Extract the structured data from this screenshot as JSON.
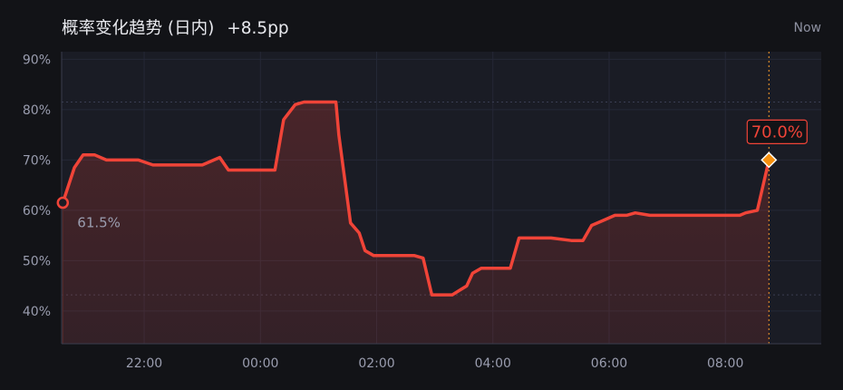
{
  "header": {
    "title": "概率变化趋势 (日内)",
    "change": "+8.5pp",
    "now_label": "Now"
  },
  "colors": {
    "background": "#121317",
    "plot_background": "#1a1c25",
    "line": "#f04438",
    "fill": "#f04438",
    "end_marker": "#f5900f",
    "axis_text": "#9a9daf",
    "grid": "#252837",
    "now_line": "#d98a2b"
  },
  "chart_data": {
    "type": "line",
    "title": "概率变化趋势 (日内)",
    "xlabel": "",
    "ylabel": "",
    "y_unit": "%",
    "ylim": [
      33.5,
      91.5
    ],
    "y_ticks": [
      40,
      50,
      60,
      70,
      80,
      90
    ],
    "y_tick_labels": [
      "40%",
      "50%",
      "60%",
      "70%",
      "80%",
      "90%"
    ],
    "x_range_hours": [
      20.58,
      33.65
    ],
    "x_ticks": [
      22,
      24,
      26,
      28,
      30,
      32
    ],
    "x_tick_labels": [
      "22:00",
      "00:00",
      "02:00",
      "04:00",
      "06:00",
      "08:00"
    ],
    "grid": true,
    "reference_lines": [
      81.5,
      43.2
    ],
    "start_label": "61.5%",
    "end_label": "70.0%",
    "now_x": 32.75,
    "series": [
      {
        "x": [
          20.6,
          20.8,
          20.95,
          21.15,
          21.35,
          21.9,
          22.15,
          23.0,
          23.3,
          23.45,
          23.65,
          24.25,
          24.4,
          24.6,
          24.75,
          24.8,
          25.3,
          25.35,
          25.55,
          25.7,
          25.8,
          25.95,
          26.3,
          26.65,
          26.8,
          26.95,
          27.2,
          27.3,
          27.55,
          27.65,
          27.8,
          28.0,
          28.3,
          28.45,
          28.75,
          29.0,
          29.35,
          29.5,
          29.55,
          29.7,
          29.9,
          30.1,
          30.3,
          30.45,
          30.7,
          31.0,
          31.1,
          31.2,
          31.5,
          32.25,
          32.35,
          32.55,
          32.75
        ],
        "y": [
          61.5,
          68.5,
          71,
          71,
          70,
          70,
          69,
          69,
          70.5,
          68,
          68,
          68,
          78,
          81,
          81.5,
          81.5,
          81.5,
          75,
          57.5,
          55.5,
          52,
          51,
          51,
          51,
          50.5,
          43.2,
          43.2,
          43.2,
          45,
          47.5,
          48.5,
          48.5,
          48.5,
          54.5,
          54.5,
          54.5,
          54,
          54,
          54,
          57,
          58,
          59,
          59,
          59.5,
          59,
          59,
          59,
          59,
          59,
          59,
          59.5,
          60,
          70
        ]
      }
    ]
  }
}
